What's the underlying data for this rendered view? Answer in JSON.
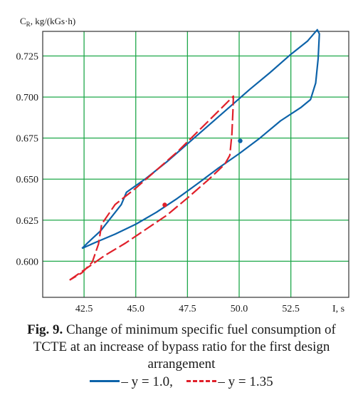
{
  "chart_data": {
    "type": "line",
    "ylabel": "C",
    "ylabel_sub": "R",
    "ylabel_unit": ", kg/(kGs·h)",
    "xlabel": "I, s",
    "xlim": [
      40.5,
      55.3
    ],
    "ylim": [
      0.578,
      0.74
    ],
    "xticks": [
      42.5,
      45.0,
      47.5,
      50.0,
      52.5
    ],
    "xtick_labels": [
      "42.5",
      "45.0",
      "47.5",
      "50.0",
      "52.5"
    ],
    "yticks": [
      0.6,
      0.625,
      0.65,
      0.675,
      0.7,
      0.725
    ],
    "ytick_labels": [
      "0.600",
      "0.625",
      "0.650",
      "0.675",
      "0.700",
      "0.725"
    ],
    "grid": true,
    "grid_color": "#1fa84a",
    "series": [
      {
        "color": "#0d63a9",
        "dash": "solid",
        "points": [
          [
            42.4,
            0.6078
          ],
          [
            43.0,
            0.6112
          ],
          [
            44.0,
            0.6165
          ],
          [
            45.0,
            0.6225
          ],
          [
            46.0,
            0.6298
          ],
          [
            47.0,
            0.6382
          ],
          [
            48.0,
            0.6473
          ],
          [
            49.0,
            0.6568
          ],
          [
            50.0,
            0.6655
          ],
          [
            51.0,
            0.675
          ],
          [
            52.0,
            0.6855
          ],
          [
            53.0,
            0.6938
          ],
          [
            53.45,
            0.6985
          ],
          [
            53.7,
            0.7085
          ],
          [
            53.82,
            0.7235
          ],
          [
            53.88,
            0.7385
          ],
          [
            53.78,
            0.741
          ],
          [
            53.3,
            0.734
          ],
          [
            52.5,
            0.726
          ],
          [
            51.5,
            0.715
          ],
          [
            50.5,
            0.7045
          ],
          [
            49.5,
            0.6935
          ],
          [
            48.5,
            0.6825
          ],
          [
            47.5,
            0.6715
          ],
          [
            46.5,
            0.6605
          ],
          [
            45.5,
            0.6505
          ],
          [
            44.55,
            0.642
          ],
          [
            44.3,
            0.6345
          ],
          [
            43.8,
            0.6265
          ],
          [
            43.3,
            0.6185
          ],
          [
            42.7,
            0.6115
          ],
          [
            42.4,
            0.6078
          ]
        ]
      },
      {
        "color": "#e0202a",
        "dash": "dashed",
        "points": [
          [
            41.8,
            0.5885
          ],
          [
            42.6,
            0.5955
          ],
          [
            43.5,
            0.6035
          ],
          [
            44.5,
            0.611
          ],
          [
            45.5,
            0.6195
          ],
          [
            46.5,
            0.628
          ],
          [
            47.5,
            0.6385
          ],
          [
            48.5,
            0.6495
          ],
          [
            49.3,
            0.659
          ],
          [
            49.55,
            0.6645
          ],
          [
            49.65,
            0.6775
          ],
          [
            49.7,
            0.692
          ],
          [
            49.72,
            0.7005
          ],
          [
            49.0,
            0.6915
          ],
          [
            48.0,
            0.679
          ],
          [
            47.0,
            0.6665
          ],
          [
            46.0,
            0.6555
          ],
          [
            45.0,
            0.6445
          ],
          [
            44.0,
            0.6345
          ],
          [
            43.35,
            0.6225
          ],
          [
            43.2,
            0.6105
          ],
          [
            42.9,
            0.5995
          ],
          [
            42.4,
            0.593
          ],
          [
            41.8,
            0.5885
          ]
        ]
      }
    ],
    "annotation_points": [
      {
        "x": 50.05,
        "y": 0.6733,
        "color": "#0d63a9"
      },
      {
        "x": 46.4,
        "y": 0.6343,
        "color": "#e0202a"
      }
    ]
  },
  "caption": {
    "fig_label": "Fig. 9.",
    "line1": " Change of minimum specific fuel consumption of",
    "line2": "TCTE at an increase of bypass ratio for the first design",
    "line3": "arrangement"
  },
  "legend": {
    "items": [
      {
        "text": "– y = 1.0,",
        "color": "#0d63a9",
        "style": "solid"
      },
      {
        "text": "– y = 1.35",
        "color": "#e0202a",
        "style": "dashed"
      }
    ]
  }
}
